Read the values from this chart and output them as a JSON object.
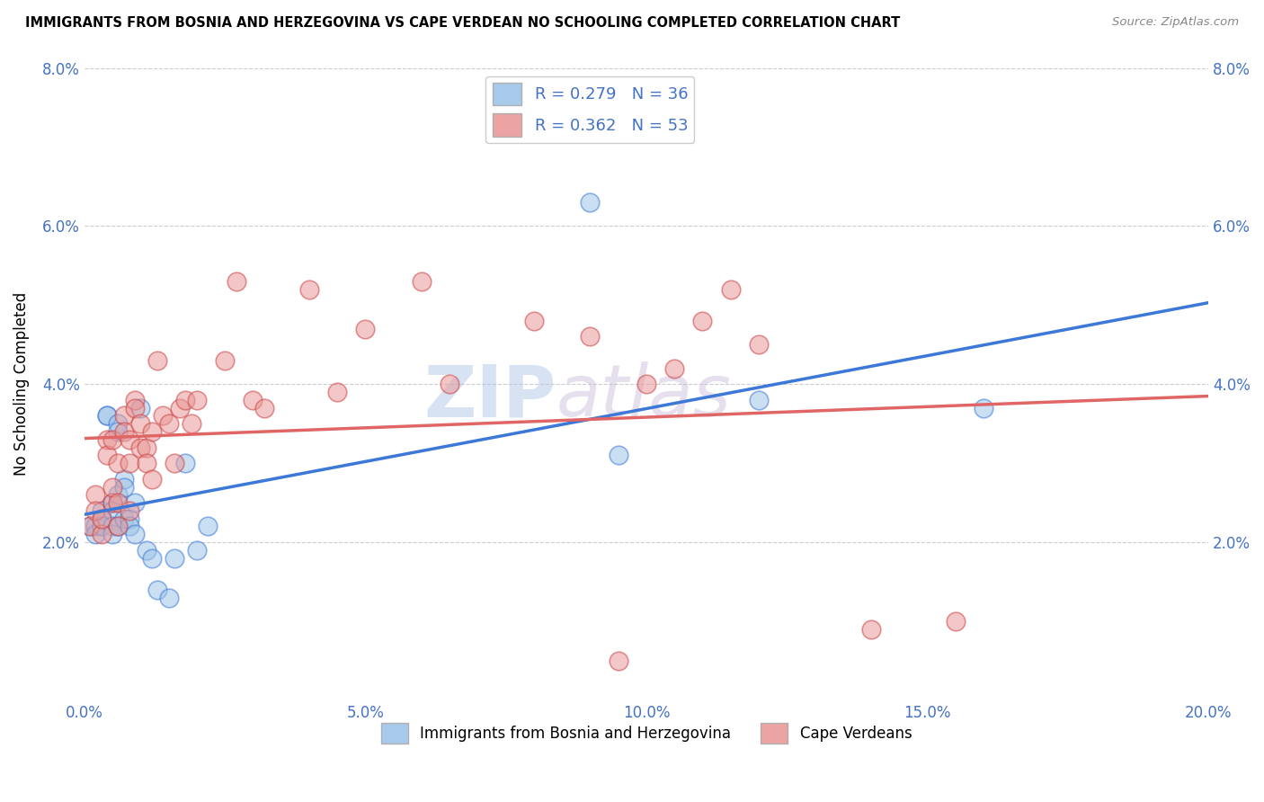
{
  "title": "IMMIGRANTS FROM BOSNIA AND HERZEGOVINA VS CAPE VERDEAN NO SCHOOLING COMPLETED CORRELATION CHART",
  "source": "Source: ZipAtlas.com",
  "ylabel": "No Schooling Completed",
  "x_min": 0.0,
  "x_max": 0.2,
  "y_min": 0.0,
  "y_max": 0.08,
  "x_ticks": [
    0.0,
    0.05,
    0.1,
    0.15,
    0.2
  ],
  "x_tick_labels": [
    "0.0%",
    "5.0%",
    "10.0%",
    "15.0%",
    "20.0%"
  ],
  "y_ticks": [
    0.0,
    0.02,
    0.04,
    0.06,
    0.08
  ],
  "y_tick_labels": [
    "",
    "2.0%",
    "4.0%",
    "6.0%",
    "8.0%"
  ],
  "legend_r1": "R = 0.279",
  "legend_n1": "N = 36",
  "legend_r2": "R = 0.362",
  "legend_n2": "N = 53",
  "legend_label1": "Immigrants from Bosnia and Herzegovina",
  "legend_label2": "Cape Verdeans",
  "color_blue": "#9fc5e8",
  "color_pink": "#ea9999",
  "line_color_blue": "#3c78d8",
  "line_color_pink": "#e06666",
  "bg_color": "#ffffff",
  "grid_color": "#cccccc",
  "watermark_zip": "ZIP",
  "watermark_atlas": "atlas",
  "blue_x": [
    0.001,
    0.002,
    0.002,
    0.003,
    0.003,
    0.003,
    0.004,
    0.004,
    0.005,
    0.005,
    0.005,
    0.005,
    0.006,
    0.006,
    0.006,
    0.006,
    0.007,
    0.007,
    0.007,
    0.008,
    0.008,
    0.009,
    0.009,
    0.01,
    0.011,
    0.012,
    0.013,
    0.015,
    0.016,
    0.018,
    0.02,
    0.022,
    0.09,
    0.095,
    0.12,
    0.16
  ],
  "blue_y": [
    0.022,
    0.022,
    0.021,
    0.024,
    0.023,
    0.022,
    0.036,
    0.036,
    0.025,
    0.024,
    0.022,
    0.021,
    0.035,
    0.034,
    0.026,
    0.022,
    0.028,
    0.027,
    0.023,
    0.023,
    0.022,
    0.025,
    0.021,
    0.037,
    0.019,
    0.018,
    0.014,
    0.013,
    0.018,
    0.03,
    0.019,
    0.022,
    0.063,
    0.031,
    0.038,
    0.037
  ],
  "pink_x": [
    0.001,
    0.002,
    0.002,
    0.003,
    0.003,
    0.004,
    0.004,
    0.005,
    0.005,
    0.005,
    0.006,
    0.006,
    0.006,
    0.007,
    0.007,
    0.008,
    0.008,
    0.008,
    0.009,
    0.009,
    0.01,
    0.01,
    0.011,
    0.011,
    0.012,
    0.012,
    0.013,
    0.014,
    0.015,
    0.016,
    0.017,
    0.018,
    0.019,
    0.02,
    0.025,
    0.027,
    0.03,
    0.032,
    0.04,
    0.045,
    0.05,
    0.06,
    0.065,
    0.08,
    0.09,
    0.095,
    0.1,
    0.105,
    0.11,
    0.115,
    0.12,
    0.14,
    0.155
  ],
  "pink_y": [
    0.022,
    0.026,
    0.024,
    0.021,
    0.023,
    0.033,
    0.031,
    0.033,
    0.025,
    0.027,
    0.022,
    0.025,
    0.03,
    0.036,
    0.034,
    0.03,
    0.033,
    0.024,
    0.038,
    0.037,
    0.035,
    0.032,
    0.032,
    0.03,
    0.028,
    0.034,
    0.043,
    0.036,
    0.035,
    0.03,
    0.037,
    0.038,
    0.035,
    0.038,
    0.043,
    0.053,
    0.038,
    0.037,
    0.052,
    0.039,
    0.047,
    0.053,
    0.04,
    0.048,
    0.046,
    0.005,
    0.04,
    0.042,
    0.048,
    0.052,
    0.045,
    0.009,
    0.01
  ]
}
